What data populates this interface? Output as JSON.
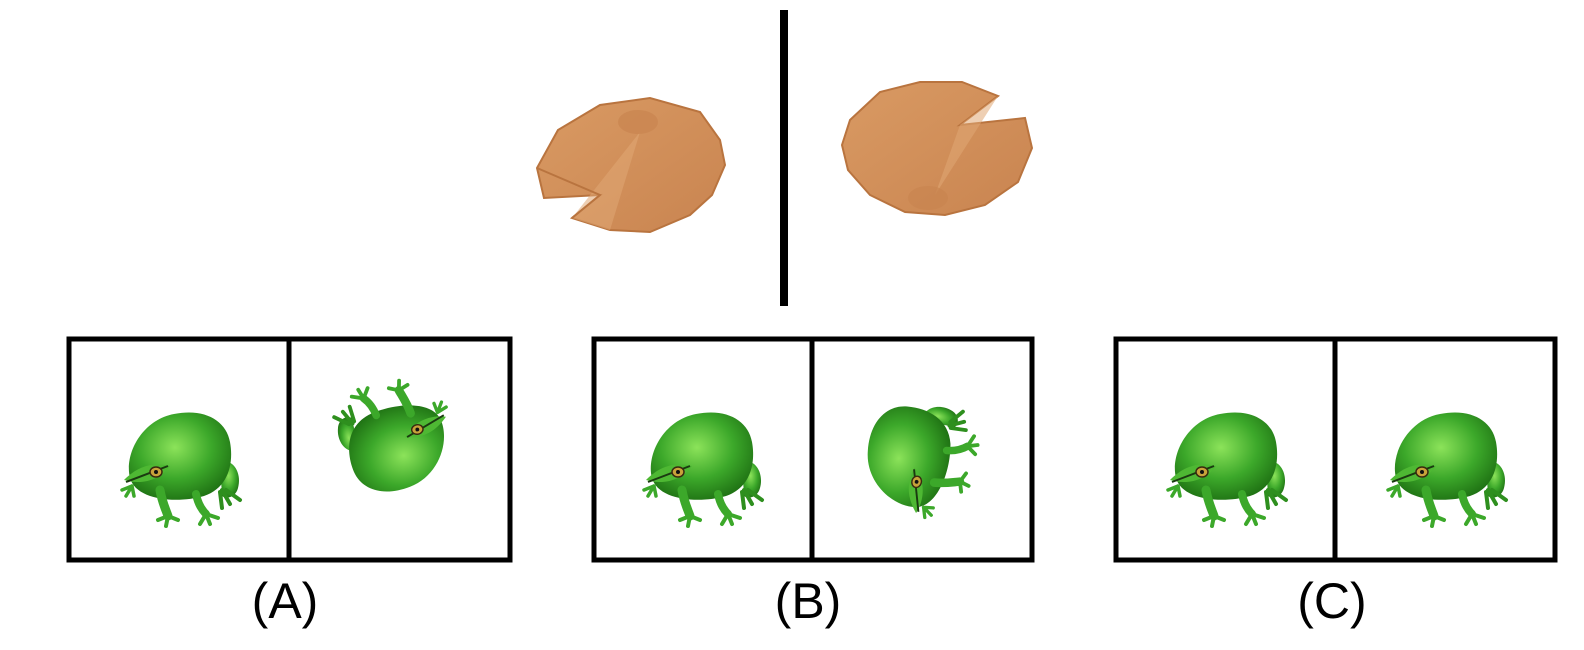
{
  "reference": {
    "left_object": "lily-pad-cone-icon",
    "right_object": "lily-pad-cone-icon",
    "color": "#D4945F",
    "divider_color": "#000000"
  },
  "options": [
    {
      "label": "(A)",
      "left_object": "frog-icon",
      "right_object": "frog-icon",
      "right_view": "rotated-upside-down"
    },
    {
      "label": "(B)",
      "left_object": "frog-icon",
      "right_object": "frog-icon",
      "right_view": "rotated-top-down"
    },
    {
      "label": "(C)",
      "left_object": "frog-icon",
      "right_object": "frog-icon",
      "right_view": "same-view"
    }
  ],
  "colors": {
    "frog": "#3CA82A",
    "frog_dark": "#1F7A14",
    "frame": "#000000"
  }
}
